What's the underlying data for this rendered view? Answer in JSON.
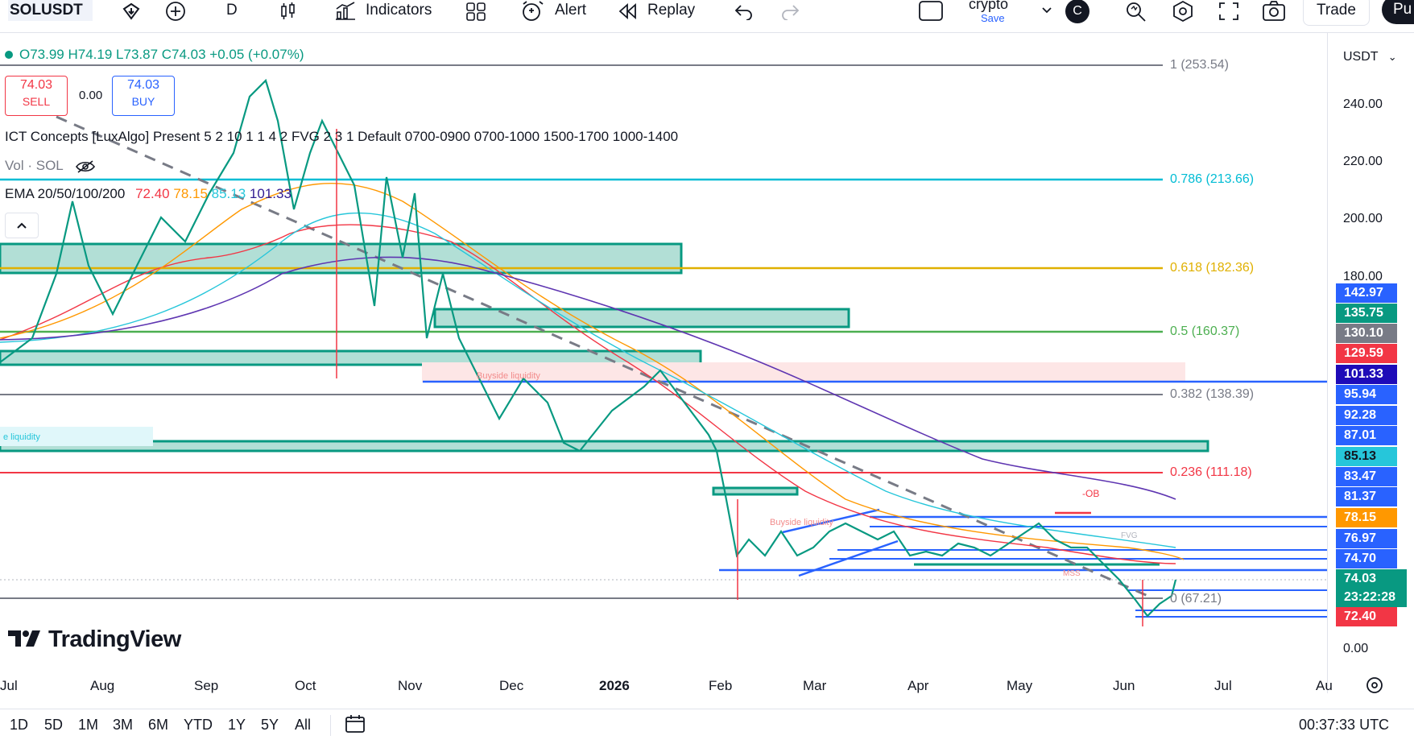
{
  "toolbar": {
    "symbol": "SOLUSDT",
    "interval": "D",
    "indicators_label": "Indicators",
    "alert_label": "Alert",
    "replay_label": "Replay",
    "layout_name": "crypto",
    "layout_status": "Save",
    "avatar_letter": "C",
    "trade_label": "Trade",
    "publish_label": "Pu"
  },
  "legend": {
    "ohlc": "O73.99 H74.19 L73.87 C74.03 +0.05 (+0.07%)",
    "sell_price": "74.03",
    "sell_label": "SELL",
    "spread": "0.00",
    "buy_price": "74.03",
    "buy_label": "BUY",
    "indicator_ict": "ICT Concepts [LuxAlgo] Present 5 2 10 1 1 4 2 FVG 2 3 1 Default 0700-0900 0700-1000 1500-1700 1000-1400",
    "indicator_vol": "Vol · SOL",
    "ema_name": "EMA 20/50/100/200",
    "ema_values": [
      {
        "v": "72.40",
        "color": "#f23645"
      },
      {
        "v": "78.15",
        "color": "#ff9800"
      },
      {
        "v": "85.13",
        "color": "#26c6da"
      },
      {
        "v": "101.33",
        "color": "#311b92"
      }
    ]
  },
  "fib_levels": [
    {
      "label": "1 (253.54)",
      "color": "#787b86"
    },
    {
      "label": "0.786 (213.66)",
      "color": "#00bcd4"
    },
    {
      "label": "0.618 (182.36)",
      "color": "#e0b000"
    },
    {
      "label": "0.5 (160.37)",
      "color": "#4caf50"
    },
    {
      "label": "0.382 (138.39)",
      "color": "#787b86"
    },
    {
      "label": "0.236 (111.18)",
      "color": "#f23645"
    },
    {
      "label": "0 (67.21)",
      "color": "#787b86"
    }
  ],
  "annotations": {
    "buyside_1": "Buyside liquidity",
    "buyside_2": "Buyside liquidity",
    "sellside": "e liquidity",
    "ob": "-OB",
    "mss": "MSS",
    "fvg": "FVG"
  },
  "price_axis": {
    "currency": "USDT",
    "labels": [
      "240.00",
      "220.00",
      "200.00",
      "180.00",
      "0.00"
    ],
    "tags": [
      {
        "v": "142.97",
        "color": "#2962ff"
      },
      {
        "v": "135.75",
        "color": "#089981"
      },
      {
        "v": "130.10",
        "color": "#787b86"
      },
      {
        "v": "129.59",
        "color": "#f23645"
      },
      {
        "v": "101.33",
        "color": "#1e0bb8"
      },
      {
        "v": "95.94",
        "color": "#2962ff"
      },
      {
        "v": "92.28",
        "color": "#2962ff"
      },
      {
        "v": "87.01",
        "color": "#2962ff"
      },
      {
        "v": "85.13",
        "color": "#26c6da"
      },
      {
        "v": "83.47",
        "color": "#2962ff"
      },
      {
        "v": "81.37",
        "color": "#2962ff"
      },
      {
        "v": "78.15",
        "color": "#ff9800"
      },
      {
        "v": "76.97",
        "color": "#2962ff"
      },
      {
        "v": "74.70",
        "color": "#2962ff"
      },
      {
        "v": "74.03",
        "color": "#089981"
      },
      {
        "v": "23:22:28",
        "color": "#089981"
      },
      {
        "v": "72.40",
        "color": "#f23645"
      }
    ]
  },
  "time_axis": [
    "Jul",
    "Aug",
    "Sep",
    "Oct",
    "Nov",
    "Dec",
    "2026",
    "Feb",
    "Mar",
    "Apr",
    "May",
    "Jun",
    "Jul",
    "Au"
  ],
  "ranges": [
    "1D",
    "5D",
    "1M",
    "3M",
    "6M",
    "YTD",
    "1Y",
    "5Y",
    "All"
  ],
  "clock": "00:37:33 UTC",
  "brand": "TradingView"
}
